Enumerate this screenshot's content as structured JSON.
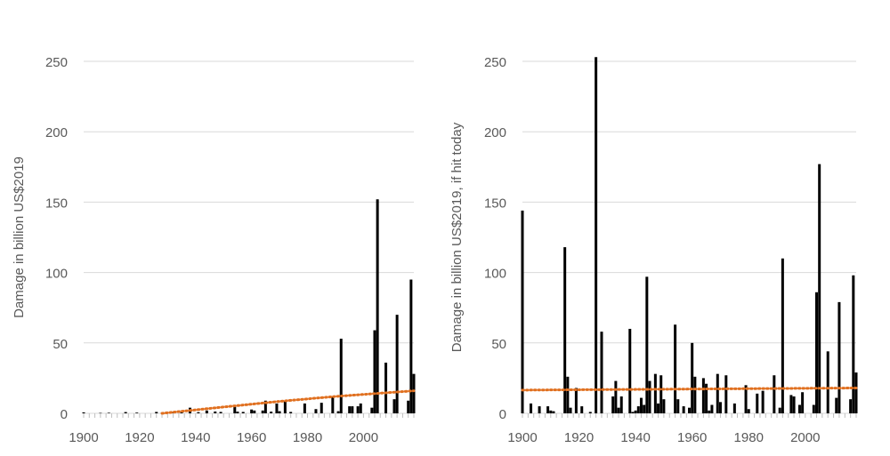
{
  "chart_data": [
    {
      "type": "bar",
      "title": "",
      "xlabel": "",
      "ylabel": "Damage in billion US$2019",
      "xlim": [
        1900,
        2018
      ],
      "ylim": [
        0,
        250
      ],
      "xticks": [
        1900,
        1920,
        1940,
        1960,
        1980,
        2000
      ],
      "yticks": [
        0,
        50,
        100,
        150,
        200,
        250
      ],
      "grid": true,
      "trendline": {
        "style": "dotted",
        "color": "#E07020",
        "points": [
          [
            1928,
            0
          ],
          [
            1950,
            4.5
          ],
          [
            1970,
            8.5
          ],
          [
            1990,
            12
          ],
          [
            2018,
            16
          ]
        ]
      },
      "series": [
        {
          "values": [
            [
              1900,
              0.7
            ],
            [
              1906,
              0.3
            ],
            [
              1909,
              0.4
            ],
            [
              1915,
              0.9
            ],
            [
              1919,
              0.5
            ],
            [
              1926,
              1
            ],
            [
              1928,
              0.4
            ],
            [
              1932,
              0.5
            ],
            [
              1935,
              0.6
            ],
            [
              1938,
              4
            ],
            [
              1941,
              0.8
            ],
            [
              1944,
              2
            ],
            [
              1947,
              1.3
            ],
            [
              1949,
              1
            ],
            [
              1954,
              5.5
            ],
            [
              1955,
              1.2
            ],
            [
              1957,
              1
            ],
            [
              1960,
              2.7
            ],
            [
              1961,
              2
            ],
            [
              1964,
              2
            ],
            [
              1965,
              9
            ],
            [
              1967,
              1.2
            ],
            [
              1969,
              7
            ],
            [
              1970,
              1.5
            ],
            [
              1972,
              8.5
            ],
            [
              1974,
              1
            ],
            [
              1979,
              7
            ],
            [
              1983,
              3
            ],
            [
              1985,
              7.5
            ],
            [
              1989,
              12
            ],
            [
              1991,
              1.5
            ],
            [
              1992,
              53
            ],
            [
              1995,
              5
            ],
            [
              1996,
              5
            ],
            [
              1998,
              5
            ],
            [
              1999,
              7
            ],
            [
              2003,
              4
            ],
            [
              2004,
              59
            ],
            [
              2005,
              152
            ],
            [
              2008,
              36
            ],
            [
              2011,
              10
            ],
            [
              2012,
              70
            ],
            [
              2016,
              9
            ],
            [
              2017,
              95
            ],
            [
              2018,
              28
            ]
          ]
        }
      ]
    },
    {
      "type": "bar",
      "title": "",
      "xlabel": "",
      "ylabel": "Damage in billion US$2019, if hit today",
      "xlim": [
        1900,
        2018
      ],
      "ylim": [
        0,
        250
      ],
      "xticks": [
        1900,
        1920,
        1940,
        1960,
        1980,
        2000
      ],
      "yticks": [
        0,
        50,
        100,
        150,
        200,
        250
      ],
      "grid": true,
      "trendline": {
        "style": "dotted",
        "color": "#E07020",
        "points": [
          [
            1900,
            16.5
          ],
          [
            2018,
            18
          ]
        ]
      },
      "series": [
        {
          "values": [
            [
              1900,
              144
            ],
            [
              1903,
              7
            ],
            [
              1906,
              5
            ],
            [
              1909,
              5
            ],
            [
              1910,
              2
            ],
            [
              1911,
              1.5
            ],
            [
              1915,
              118
            ],
            [
              1916,
              26
            ],
            [
              1917,
              4
            ],
            [
              1919,
              18
            ],
            [
              1921,
              5
            ],
            [
              1924,
              1
            ],
            [
              1926,
              253
            ],
            [
              1928,
              58
            ],
            [
              1932,
              12
            ],
            [
              1933,
              23
            ],
            [
              1934,
              4
            ],
            [
              1935,
              12
            ],
            [
              1938,
              60
            ],
            [
              1939,
              1
            ],
            [
              1940,
              2
            ],
            [
              1941,
              5
            ],
            [
              1942,
              11
            ],
            [
              1943,
              6
            ],
            [
              1944,
              97
            ],
            [
              1945,
              23
            ],
            [
              1947,
              28
            ],
            [
              1948,
              7
            ],
            [
              1949,
              27
            ],
            [
              1950,
              10
            ],
            [
              1954,
              63
            ],
            [
              1955,
              10
            ],
            [
              1957,
              5
            ],
            [
              1959,
              4
            ],
            [
              1960,
              50
            ],
            [
              1961,
              26
            ],
            [
              1964,
              25
            ],
            [
              1965,
              21
            ],
            [
              1966,
              2
            ],
            [
              1967,
              6
            ],
            [
              1969,
              28
            ],
            [
              1970,
              8
            ],
            [
              1972,
              27
            ],
            [
              1975,
              7
            ],
            [
              1979,
              20
            ],
            [
              1980,
              3
            ],
            [
              1983,
              14
            ],
            [
              1985,
              16
            ],
            [
              1989,
              27
            ],
            [
              1991,
              4
            ],
            [
              1992,
              110
            ],
            [
              1995,
              13
            ],
            [
              1996,
              12
            ],
            [
              1998,
              6
            ],
            [
              1999,
              15
            ],
            [
              2003,
              6
            ],
            [
              2004,
              86
            ],
            [
              2005,
              177
            ],
            [
              2008,
              44
            ],
            [
              2011,
              11
            ],
            [
              2012,
              79
            ],
            [
              2016,
              10
            ],
            [
              2017,
              98
            ],
            [
              2018,
              29
            ]
          ]
        }
      ]
    }
  ]
}
